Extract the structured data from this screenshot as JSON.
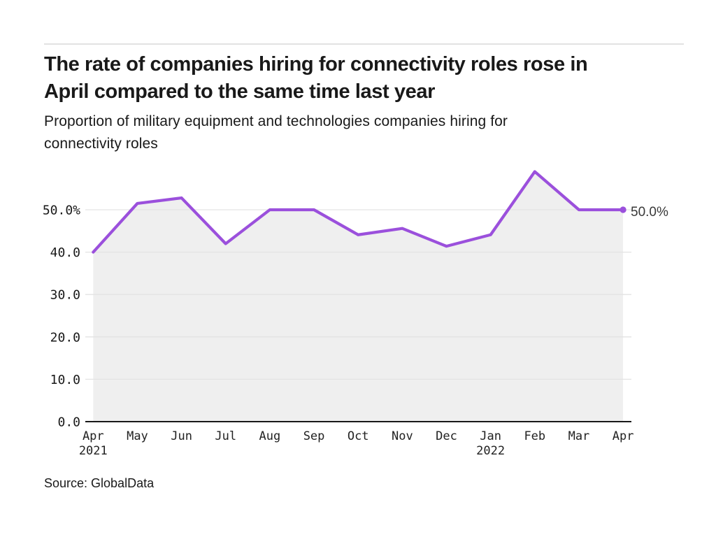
{
  "header": {
    "title_line1": "The rate of companies hiring for connectivity roles rose in",
    "title_line2": "April compared to the same time last year",
    "subtitle_line1": "Proportion of military equipment and technologies companies hiring for",
    "subtitle_line2": "connectivity roles"
  },
  "footer": {
    "source": "Source: GlobalData"
  },
  "chart_data": {
    "type": "area",
    "title": "The rate of companies hiring for connectivity roles rose in April compared to the same time last year",
    "subtitle": "Proportion of military equipment and technologies companies hiring for connectivity roles",
    "months": [
      {
        "label": "Apr",
        "year": "2021"
      },
      {
        "label": "May"
      },
      {
        "label": "Jun"
      },
      {
        "label": "Jul"
      },
      {
        "label": "Aug"
      },
      {
        "label": "Sep"
      },
      {
        "label": "Oct"
      },
      {
        "label": "Nov"
      },
      {
        "label": "Dec"
      },
      {
        "label": "Jan",
        "year": "2022"
      },
      {
        "label": "Feb"
      },
      {
        "label": "Mar"
      },
      {
        "label": "Apr"
      }
    ],
    "values": [
      40.0,
      51.5,
      52.8,
      42.0,
      50.0,
      50.0,
      44.1,
      45.6,
      41.4,
      44.1,
      59.0,
      50.0,
      50.0
    ],
    "unit": "%",
    "y_ticks": [
      {
        "value": 50,
        "label": "50.0%"
      },
      {
        "value": 40,
        "label": "40.0"
      },
      {
        "value": 30,
        "label": "30.0"
      },
      {
        "value": 20,
        "label": "20.0"
      },
      {
        "value": 10,
        "label": "10.0"
      },
      {
        "value": 0,
        "label": "0.0"
      }
    ],
    "ylim": [
      0,
      60
    ],
    "grid": "horizontal",
    "legend": "none",
    "end_annotation": "50.0%",
    "colors": {
      "line": "#9b50dc",
      "marker": "#9b50dc",
      "fill": "#efefef",
      "grid": "#e3e3e3",
      "axis": "#191919",
      "tick_text": "#191919",
      "annotation": "#383838"
    }
  }
}
